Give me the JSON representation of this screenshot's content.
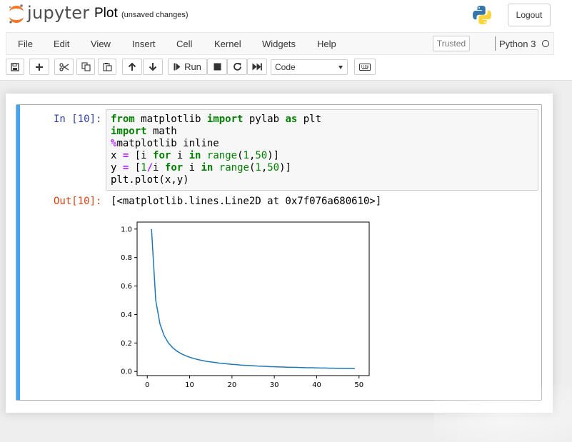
{
  "app": {
    "logo_text": "jupyter",
    "notebook_title": "Plot",
    "save_status": "(unsaved changes)",
    "logout_label": "Logout"
  },
  "menubar": {
    "items": [
      "File",
      "Edit",
      "View",
      "Insert",
      "Cell",
      "Kernel",
      "Widgets",
      "Help"
    ],
    "trusted_label": "Trusted",
    "kernel_name": "Python 3"
  },
  "toolbar": {
    "buttons": [
      {
        "name": "save-button",
        "icon": "floppy-icon"
      },
      {
        "name": "insert-cell-button",
        "icon": "plus-icon"
      },
      {
        "name": "cut-button",
        "icon": "scissors-icon"
      },
      {
        "name": "copy-button",
        "icon": "copy-icon"
      },
      {
        "name": "paste-button",
        "icon": "paste-icon"
      },
      {
        "name": "move-up-button",
        "icon": "arrow-up-icon"
      },
      {
        "name": "move-down-button",
        "icon": "arrow-down-icon"
      },
      {
        "name": "run-button",
        "icon": "step-forward-icon"
      },
      {
        "name": "interrupt-button",
        "icon": "stop-icon"
      },
      {
        "name": "restart-button",
        "icon": "refresh-icon"
      },
      {
        "name": "restart-run-all-button",
        "icon": "fast-forward-icon"
      },
      {
        "name": "command-palette-button",
        "icon": "keyboard-icon"
      }
    ],
    "run_label": "Run",
    "cell_type": "Code"
  },
  "cell": {
    "in_prompt": "In [10]:",
    "out_prompt": "Out[10]:",
    "code_lines": [
      "from matplotlib import pylab as plt",
      "import math",
      "%matplotlib inline",
      "x = [i for i in range(1,50)]",
      "y = [1/i for i in range(1,50)]",
      "plt.plot(x,y)"
    ],
    "output_text": "[<matplotlib.lines.Line2D at 0x7f076a680610>]"
  },
  "colors": {
    "cell_selected_bar": "#42a5f5",
    "line_color": "#1f77b4",
    "in_prompt": "#303f9f",
    "out_prompt": "#d84315"
  },
  "chart_data": {
    "type": "line",
    "title": "",
    "xlabel": "",
    "ylabel": "",
    "xlim": [
      -2.4,
      52.4
    ],
    "ylim": [
      -0.029,
      1.049
    ],
    "xticks": [
      0,
      10,
      20,
      30,
      40,
      50
    ],
    "yticks": [
      0.0,
      0.2,
      0.4,
      0.6,
      0.8,
      1.0
    ],
    "xtick_labels": [
      "0",
      "10",
      "20",
      "30",
      "40",
      "50"
    ],
    "ytick_labels": [
      "0.0",
      "0.2",
      "0.4",
      "0.6",
      "0.8",
      "1.0"
    ],
    "grid": false,
    "series": [
      {
        "x": [
          1,
          2,
          3,
          4,
          5,
          6,
          7,
          8,
          9,
          10,
          11,
          12,
          13,
          14,
          15,
          16,
          17,
          18,
          19,
          20,
          21,
          22,
          23,
          24,
          25,
          26,
          27,
          28,
          29,
          30,
          31,
          32,
          33,
          34,
          35,
          36,
          37,
          38,
          39,
          40,
          41,
          42,
          43,
          44,
          45,
          46,
          47,
          48,
          49
        ],
        "values": [
          1.0,
          0.5,
          0.333,
          0.25,
          0.2,
          0.167,
          0.143,
          0.125,
          0.111,
          0.1,
          0.091,
          0.083,
          0.077,
          0.071,
          0.067,
          0.063,
          0.059,
          0.056,
          0.053,
          0.05,
          0.048,
          0.045,
          0.043,
          0.042,
          0.04,
          0.038,
          0.037,
          0.036,
          0.034,
          0.033,
          0.032,
          0.031,
          0.03,
          0.029,
          0.029,
          0.028,
          0.027,
          0.026,
          0.026,
          0.025,
          0.024,
          0.024,
          0.023,
          0.023,
          0.022,
          0.022,
          0.021,
          0.021,
          0.02
        ]
      }
    ]
  }
}
